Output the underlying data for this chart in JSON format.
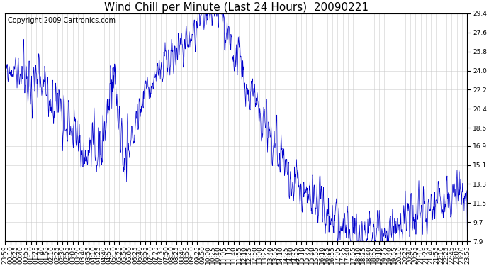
{
  "title": "Wind Chill per Minute (Last 24 Hours)  20090221",
  "copyright_text": "Copyright 2009 Cartronics.com",
  "line_color": "#0000cc",
  "background_color": "#ffffff",
  "grid_color": "#c8c8c8",
  "yticks": [
    7.9,
    9.7,
    11.5,
    13.3,
    15.1,
    16.9,
    18.6,
    20.4,
    22.2,
    24.0,
    25.8,
    27.6,
    29.4
  ],
  "ymin": 7.9,
  "ymax": 29.4,
  "xtick_labels": [
    "23:59",
    "00:10",
    "00:25",
    "00:40",
    "00:55",
    "01:10",
    "01:25",
    "01:40",
    "01:55",
    "02:10",
    "02:25",
    "02:30",
    "02:55",
    "03:05",
    "03:20",
    "03:40",
    "03:55",
    "04:10",
    "04:25",
    "04:40",
    "04:55",
    "05:10",
    "05:25",
    "05:50",
    "06:00",
    "06:25",
    "06:40",
    "06:55",
    "07:10",
    "07:25",
    "07:35",
    "07:50",
    "08:10",
    "08:25",
    "08:40",
    "08:55",
    "09:10",
    "09:25",
    "09:50",
    "10:00",
    "10:25",
    "10:40",
    "11:05",
    "11:15",
    "11:40",
    "11:55",
    "12:10",
    "12:25",
    "12:50",
    "13:00",
    "13:25",
    "13:40",
    "13:55",
    "14:10",
    "14:25",
    "14:40",
    "14:55",
    "15:10",
    "15:25",
    "15:40",
    "15:55",
    "16:10",
    "16:25",
    "16:55",
    "17:05",
    "17:25",
    "17:40",
    "17:55",
    "18:10",
    "18:25",
    "18:40",
    "18:55",
    "19:10",
    "19:25",
    "19:40",
    "19:55",
    "20:10",
    "20:25",
    "20:40",
    "20:55",
    "21:10",
    "21:25",
    "21:40",
    "21:55",
    "22:10",
    "22:25",
    "22:45",
    "23:05",
    "23:20",
    "23:55"
  ],
  "title_fontsize": 11,
  "copyright_fontsize": 7,
  "tick_fontsize": 6.5,
  "figsize": [
    6.9,
    3.75
  ],
  "dpi": 100
}
